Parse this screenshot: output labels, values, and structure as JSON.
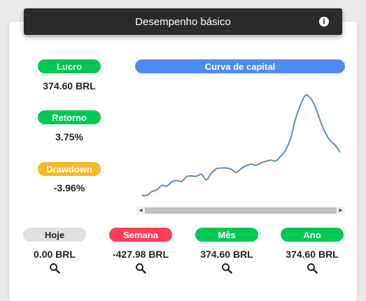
{
  "header": {
    "title": "Desempenho básico",
    "info_icon": "info-icon"
  },
  "metrics": {
    "profit": {
      "label": "Lucro",
      "value": "374.60 BRL",
      "color": "#00c853"
    },
    "return": {
      "label": "Retorno",
      "value": "3.75%",
      "color": "#00c853"
    },
    "drawdown": {
      "label": "Drawdown",
      "value": "-3.96%",
      "color": "#f9b829"
    }
  },
  "equity_curve": {
    "label": "Curva de capital",
    "color": "#4c8bf5",
    "line_color": "#5b8db8"
  },
  "periods": [
    {
      "label": "Hoje",
      "value": "0.00 BRL",
      "color": "#e0e0e0",
      "text_color": "#222222"
    },
    {
      "label": "Semana",
      "value": "-427.98 BRL",
      "color": "#ff3d57",
      "text_color": "#ffffff"
    },
    {
      "label": "Mês",
      "value": "374.60 BRL",
      "color": "#00c853",
      "text_color": "#ffffff"
    },
    {
      "label": "Ano",
      "value": "374.60 BRL",
      "color": "#00c853",
      "text_color": "#ffffff"
    }
  ],
  "chart_data": {
    "type": "line",
    "title": "Curva de capital",
    "x": [
      0,
      1,
      2,
      3,
      4,
      5,
      6,
      7,
      8,
      9,
      10,
      11,
      12,
      13,
      14,
      15,
      16,
      17,
      18,
      19,
      20,
      21,
      22,
      23,
      24,
      25,
      26,
      27,
      28,
      29,
      30,
      31,
      32,
      33,
      34,
      35,
      36,
      37,
      38,
      39,
      40
    ],
    "series": [
      {
        "values": [
          0,
          1,
          10,
          15,
          26,
          24,
          35,
          38,
          36,
          48,
          50,
          49,
          54,
          40,
          57,
          68,
          70,
          70,
          67,
          59,
          68,
          76,
          80,
          77,
          83,
          87,
          90,
          88,
          100,
          116,
          145,
          195,
          230,
          255,
          248,
          225,
          190,
          160,
          140,
          128,
          110
        ]
      }
    ],
    "grid": false,
    "legend": "none",
    "ylim": [
      0,
      270
    ]
  }
}
